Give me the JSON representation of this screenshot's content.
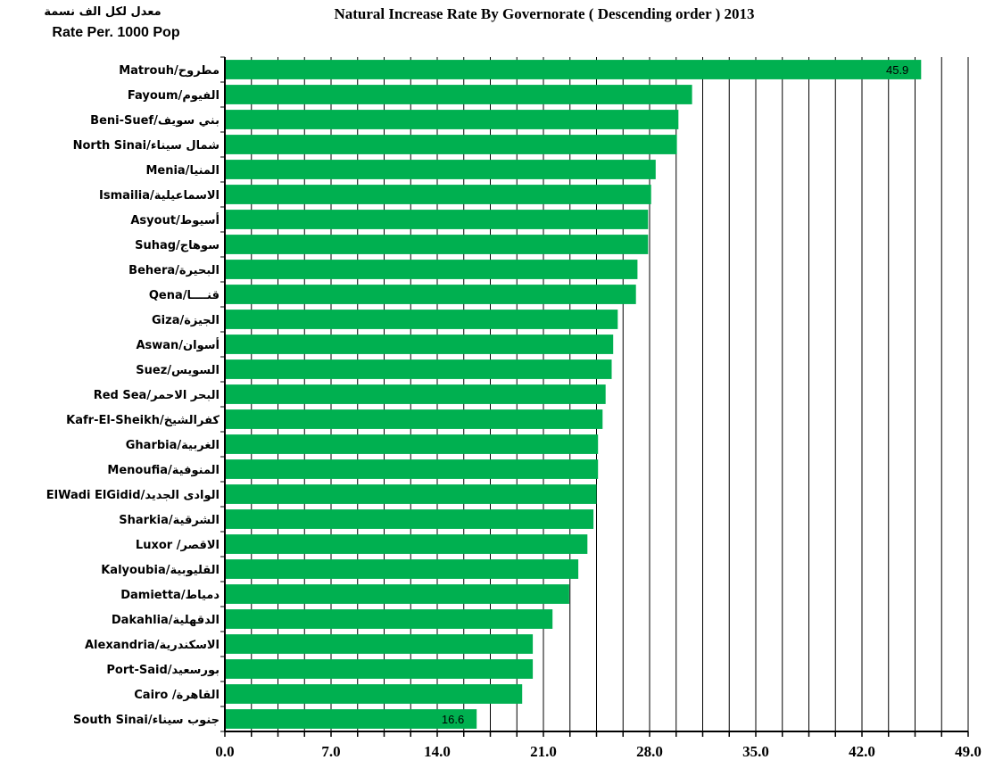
{
  "chart_data": {
    "type": "bar",
    "orientation": "horizontal",
    "title": "Natural Increase Rate By Governorate ( Descending order ) 2013",
    "unit_label_ar": "معدل لكل الف نسمة",
    "unit_label_en": "Rate Per. 1000  Pop",
    "categories": [
      "Matrouh/مطروح",
      "Fayoum/الفيوم",
      "Beni-Suef/بني سويف",
      "North Sinai/شمال سيناء",
      "Menia/المنيا",
      "Ismailia/الاسماعيلية",
      "Asyout/أسيوط",
      "Suhag/سوهاج",
      "Behera/البحيرة",
      "Qena/قنــــا",
      "Giza/الجيزة",
      "Aswan/أسوان",
      "Suez/السويس",
      "Red Sea/البحر الاحمر",
      "Kafr-El-Sheikh/كفرالشيخ",
      "Gharbia/الغربية",
      "Menoufia/المنوفية",
      "ElWadi ElGidid/الوادى الجديد",
      "Sharkia/الشرقية",
      "Luxor  /الاقصر",
      "Kalyoubia/القليوبية",
      "Damietta/دمياط",
      "Dakahlia/الدقهلية",
      "Alexandria/الاسكندرية",
      "Port-Said/بورسعيد",
      "Cairo /القاهرة",
      "South Sinai/جنوب سيناء"
    ],
    "values": [
      45.9,
      30.8,
      29.9,
      29.8,
      28.4,
      28.1,
      27.9,
      27.9,
      27.2,
      27.1,
      25.9,
      25.6,
      25.5,
      25.1,
      24.9,
      24.6,
      24.6,
      24.5,
      24.3,
      23.9,
      23.3,
      22.7,
      21.6,
      20.3,
      20.3,
      19.6,
      16.6
    ],
    "data_labels": [
      {
        "index": 0,
        "text": "45.9"
      },
      {
        "index": 26,
        "text": "16.6"
      }
    ],
    "x_ticks": [
      "0.0",
      "7.0",
      "14.0",
      "21.0",
      "28.0",
      "35.0",
      "42.0",
      "49.0"
    ],
    "xlim": [
      0,
      49
    ],
    "x_major_step": 7,
    "x_minor_step": 1.75,
    "grid": "vertical",
    "bar_color": "#00b050",
    "xlabel": "",
    "ylabel": ""
  }
}
